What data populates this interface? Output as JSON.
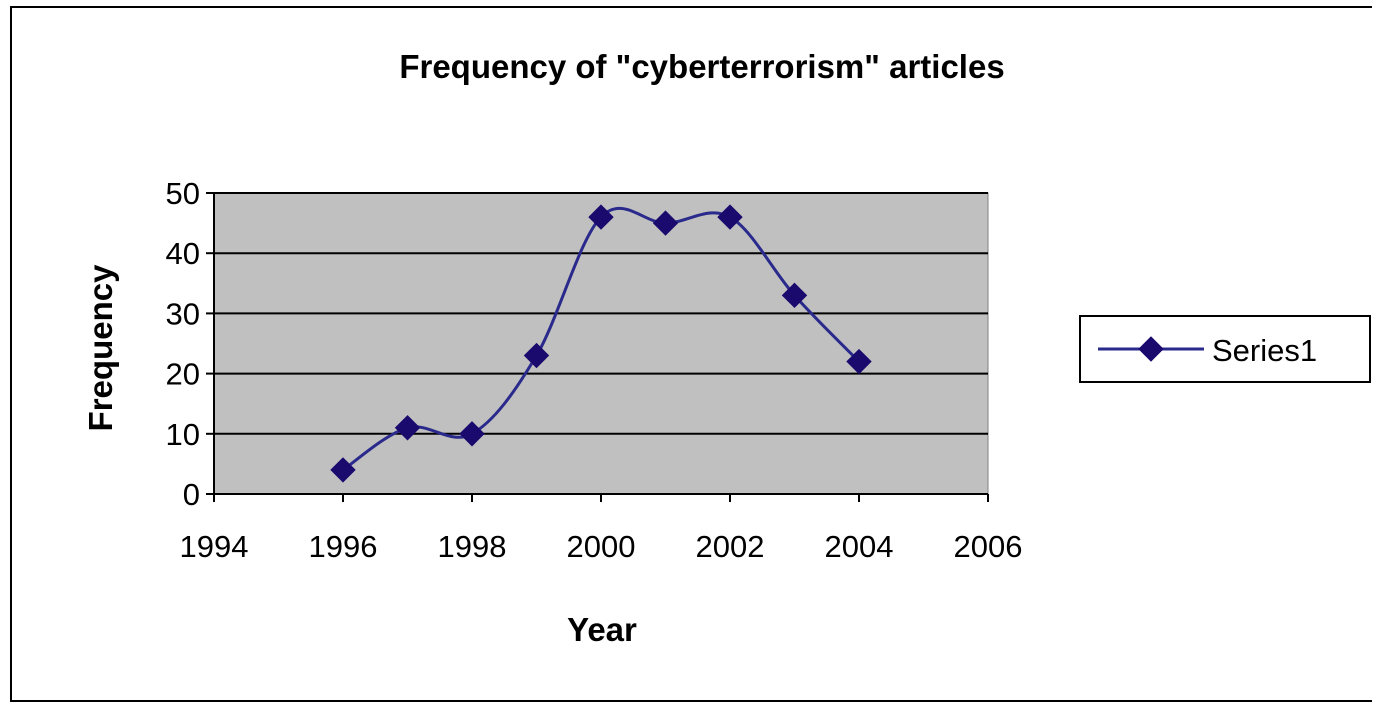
{
  "chart_data": {
    "type": "line",
    "title": "Frequency of \"cyberterrorism\" articles",
    "xlabel": "Year",
    "ylabel": "Frequency",
    "xlim": [
      1994,
      2006
    ],
    "ylim": [
      0,
      50
    ],
    "xticks": [
      1994,
      1996,
      1998,
      2000,
      2002,
      2004,
      2006
    ],
    "yticks": [
      0,
      10,
      20,
      30,
      40,
      50
    ],
    "grid": true,
    "smooth": true,
    "legend_position": "right",
    "colors": {
      "plot_background": "#c0c0c0",
      "series_line": "#2a2a8c",
      "marker": "#1a0a6e",
      "gridline": "#000000"
    },
    "series": [
      {
        "name": "Series1",
        "marker": "diamond",
        "x": [
          1996,
          1997,
          1998,
          1999,
          2000,
          2001,
          2002,
          2003,
          2004
        ],
        "y": [
          4,
          11,
          10,
          23,
          46,
          45,
          46,
          33,
          22
        ]
      }
    ]
  }
}
